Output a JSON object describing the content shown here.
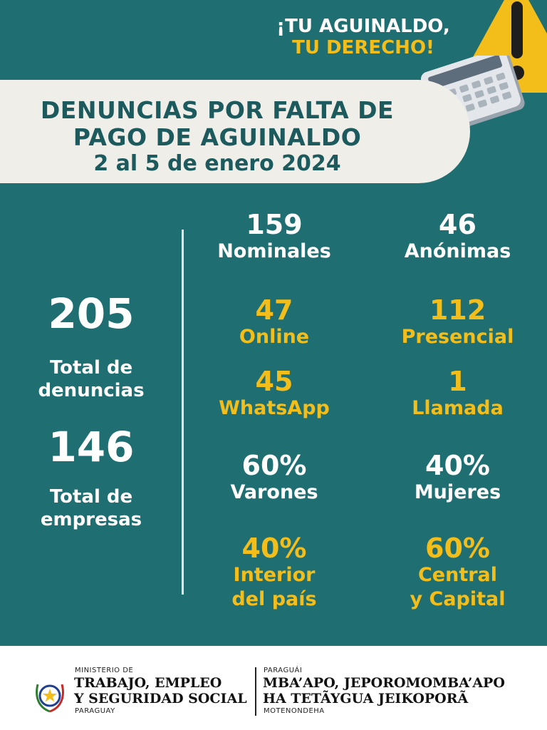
{
  "slogan": {
    "line1": "¡TU AGUINALDO,",
    "line2": "TU DERECHO!"
  },
  "title": {
    "line1": "DENUNCIAS POR FALTA DE",
    "line2": "PAGO DE AGUINALDO",
    "line3": "2 al 5 de enero 2024"
  },
  "totals": {
    "denuncias_value": "205",
    "denuncias_label_1": "Total de",
    "denuncias_label_2": "denuncias",
    "empresas_value": "146",
    "empresas_label_1": "Total de",
    "empresas_label_2": "empresas"
  },
  "stats": {
    "nominales": {
      "value": "159",
      "label": "Nominales"
    },
    "anonimas": {
      "value": "46",
      "label": "Anónimas"
    },
    "online": {
      "value": "47",
      "label": "Online"
    },
    "presencial": {
      "value": "112",
      "label": "Presencial"
    },
    "whatsapp": {
      "value": "45",
      "label": "WhatsApp"
    },
    "llamada": {
      "value": "1",
      "label": "Llamada"
    },
    "varones": {
      "value": "60%",
      "label": "Varones"
    },
    "mujeres": {
      "value": "40%",
      "label": "Mujeres"
    },
    "interior": {
      "value": "40%",
      "label_1": "Interior",
      "label_2": "del país"
    },
    "central": {
      "value": "60%",
      "label_1": "Central",
      "label_2": "y Capital"
    }
  },
  "footer": {
    "ministerio_small": "MINISTERIO DE",
    "ministerio_line1": "TRABAJO, EMPLEO",
    "ministerio_line2": "Y SEGURIDAD SOCIAL",
    "ministerio_country": "PARAGUAY",
    "guarani_small": "PARAGUÁI",
    "guarani_line1": "MBA’APO, JEPOROMOMBA’APO",
    "guarani_line2": "HA TETÃYGUA JEIKOPORÃ",
    "guarani_bottom": "MOTENONDEHA"
  },
  "icons": [
    "warning-icon",
    "calculator-icon",
    "paraguay-seal-icon"
  ],
  "colors": {
    "background": "#1f6f72",
    "accent_yellow": "#f3bd1a",
    "title_band": "#efeee8",
    "title_text": "#1d5a5e"
  }
}
